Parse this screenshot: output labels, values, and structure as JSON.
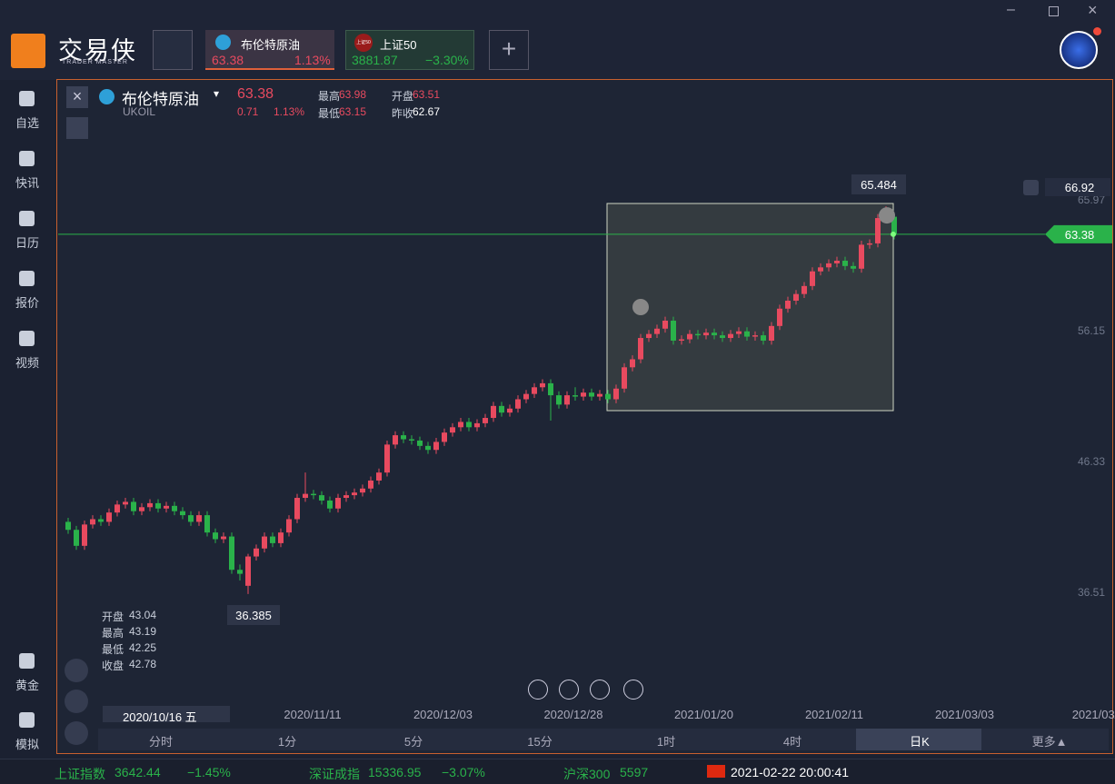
{
  "header": {
    "brand": "交易侠",
    "brand_sub": "TRADER MASTER",
    "tabs": [
      {
        "name": "布伦特原油",
        "price": "63.38",
        "change": "1.13%"
      },
      {
        "icon": "上证50",
        "name": "上证50",
        "price": "3881.87",
        "change": "−3.30%"
      }
    ]
  },
  "sidebar": {
    "items": [
      "自选",
      "快讯",
      "日历",
      "报价",
      "视频",
      "黄金",
      "模拟"
    ]
  },
  "instrument": {
    "name": "布伦特原油",
    "code": "UKOIL",
    "price": "63.38",
    "change": "0.71",
    "change_pct": "1.13%",
    "stats": [
      {
        "label": "最高",
        "value": "63.98"
      },
      {
        "label": "最低",
        "value": "63.15"
      },
      {
        "label": "开盘",
        "value": "63.51"
      },
      {
        "label": "昨收",
        "value": "62.67"
      }
    ]
  },
  "cursor": {
    "date": "2020/10/16 五",
    "ohlc": [
      {
        "label": "开盘",
        "value": "43.04"
      },
      {
        "label": "最高",
        "value": "43.19"
      },
      {
        "label": "最低",
        "value": "42.25"
      },
      {
        "label": "收盘",
        "value": "42.78"
      }
    ]
  },
  "chart_data": {
    "type": "candlestick",
    "up_color": "#e84a5f",
    "down_color": "#2ab24a",
    "ylim": [
      26.76,
      74.49
    ],
    "yticks": [
      65.97,
      56.15,
      46.33,
      36.51
    ],
    "x_labels": [
      "2020/11/11",
      "2020/12/03",
      "2020/12/28",
      "2021/01/20",
      "2021/02/11",
      "2021/03/03",
      "2021/03/"
    ],
    "last_price": 63.38,
    "alert_price": 66.92,
    "max_label": 65.484,
    "min_label": 36.385,
    "open": [
      41.8,
      41.2,
      40.0,
      41.6,
      42.0,
      41.8,
      42.5,
      43.1,
      43.3,
      42.6,
      42.9,
      43.2,
      42.8,
      43.0,
      42.6,
      42.3,
      41.8,
      42.3,
      41.0,
      40.5,
      40.7,
      38.2,
      37.0,
      39.2,
      39.8,
      40.7,
      40.2,
      41.0,
      42.0,
      43.6,
      43.9,
      43.8,
      43.4,
      42.8,
      43.6,
      43.8,
      44.0,
      44.3,
      44.9,
      45.5,
      47.6,
      48.3,
      48.0,
      47.9,
      47.5,
      47.2,
      47.8,
      48.5,
      48.9,
      49.3,
      48.9,
      49.2,
      49.6,
      50.5,
      50.0,
      50.3,
      51.0,
      51.4,
      51.9,
      52.2,
      51.3,
      50.6,
      51.3,
      51.2,
      51.5,
      51.2,
      51.4,
      51.0,
      51.8,
      53.4,
      54.0,
      55.6,
      55.9,
      56.3,
      56.9,
      55.4,
      55.5,
      55.9,
      55.8,
      56.0,
      55.8,
      55.6,
      55.9,
      56.1,
      55.7,
      55.8,
      55.4,
      56.5,
      57.8,
      58.4,
      58.9,
      59.5,
      60.6,
      60.9,
      61.2,
      61.4,
      61.0,
      60.8,
      62.6,
      62.7,
      64.6,
      64.7
    ],
    "high": [
      42.1,
      41.5,
      41.9,
      42.3,
      42.3,
      42.8,
      43.4,
      43.6,
      43.6,
      43.2,
      43.5,
      43.5,
      43.3,
      43.3,
      42.9,
      42.6,
      42.6,
      42.6,
      41.3,
      41.0,
      41.0,
      38.6,
      39.4,
      40.1,
      41.0,
      41.0,
      41.3,
      42.3,
      43.9,
      45.5,
      44.2,
      44.1,
      43.7,
      43.9,
      44.1,
      44.3,
      44.6,
      45.2,
      45.8,
      47.9,
      48.6,
      48.6,
      48.3,
      48.2,
      47.8,
      48.1,
      48.8,
      49.2,
      49.6,
      49.6,
      49.5,
      49.9,
      50.8,
      50.8,
      50.6,
      51.3,
      51.7,
      52.2,
      52.5,
      52.5,
      51.6,
      51.6,
      51.9,
      51.8,
      51.8,
      51.7,
      51.7,
      52.1,
      53.7,
      54.3,
      55.9,
      56.2,
      56.6,
      57.2,
      57.2,
      55.8,
      56.2,
      56.2,
      56.3,
      56.3,
      56.1,
      56.2,
      56.4,
      56.4,
      56.1,
      56.1,
      56.8,
      58.1,
      58.7,
      59.2,
      59.8,
      60.9,
      61.2,
      61.5,
      61.7,
      61.7,
      61.3,
      62.9,
      63.0,
      64.9,
      65.484,
      65.0
    ],
    "low": [
      40.9,
      39.7,
      39.7,
      41.3,
      41.5,
      41.5,
      42.2,
      42.8,
      42.3,
      42.3,
      42.6,
      42.5,
      42.5,
      42.3,
      42.0,
      41.5,
      41.5,
      40.7,
      40.2,
      40.2,
      37.9,
      37.4,
      36.385,
      38.9,
      39.5,
      39.9,
      39.9,
      40.7,
      41.7,
      43.3,
      43.5,
      43.1,
      42.5,
      42.5,
      43.3,
      43.5,
      43.7,
      44.0,
      44.6,
      45.2,
      47.3,
      47.7,
      47.6,
      47.2,
      46.9,
      46.9,
      47.5,
      48.2,
      48.6,
      48.6,
      48.6,
      48.9,
      49.3,
      49.7,
      49.7,
      50.0,
      50.7,
      51.1,
      51.6,
      49.4,
      50.3,
      50.3,
      50.9,
      50.9,
      50.9,
      50.9,
      50.7,
      50.7,
      51.5,
      53.1,
      53.7,
      55.3,
      55.6,
      56.0,
      55.1,
      55.1,
      55.2,
      55.5,
      55.5,
      55.5,
      55.3,
      55.3,
      55.6,
      55.4,
      55.4,
      55.1,
      55.1,
      56.2,
      57.5,
      58.1,
      58.6,
      59.2,
      60.3,
      60.6,
      60.9,
      60.7,
      60.5,
      60.5,
      62.3,
      62.4,
      64.3,
      63.0
    ],
    "close": [
      41.2,
      40.0,
      41.6,
      42.0,
      41.8,
      42.5,
      43.1,
      43.3,
      42.6,
      42.9,
      43.2,
      42.8,
      43.0,
      42.6,
      42.3,
      41.8,
      42.3,
      41.0,
      40.5,
      40.7,
      38.2,
      37.9,
      39.2,
      39.8,
      40.7,
      40.2,
      41.0,
      42.0,
      43.6,
      43.9,
      43.8,
      43.4,
      42.8,
      43.6,
      43.8,
      44.0,
      44.3,
      44.9,
      45.5,
      47.6,
      48.3,
      48.0,
      47.9,
      47.5,
      47.2,
      47.8,
      48.5,
      48.9,
      49.3,
      48.9,
      49.2,
      49.6,
      50.5,
      50.0,
      50.3,
      51.0,
      51.4,
      51.9,
      52.2,
      51.3,
      50.6,
      51.3,
      51.2,
      51.5,
      51.2,
      51.4,
      51.0,
      51.8,
      53.4,
      54.0,
      55.6,
      55.9,
      56.3,
      56.9,
      55.4,
      55.5,
      55.9,
      55.8,
      56.0,
      55.8,
      55.6,
      55.9,
      56.1,
      55.7,
      55.8,
      55.4,
      56.5,
      57.8,
      58.4,
      58.9,
      59.5,
      60.6,
      60.9,
      61.2,
      61.4,
      61.0,
      60.8,
      62.6,
      62.7,
      64.6,
      64.7,
      63.38
    ]
  },
  "periods": [
    "分时",
    "1分",
    "5分",
    "15分",
    "1时",
    "4时",
    "日K",
    "更多▲"
  ],
  "status": {
    "indices": [
      {
        "name": "上证指数",
        "value": "3642.44",
        "change": "−1.45%"
      },
      {
        "name": "深证成指",
        "value": "15336.95",
        "change": "−3.07%"
      },
      {
        "name": "沪深300",
        "value": "5597"
      }
    ],
    "datetime": "2021-02-22 20:00:41"
  }
}
